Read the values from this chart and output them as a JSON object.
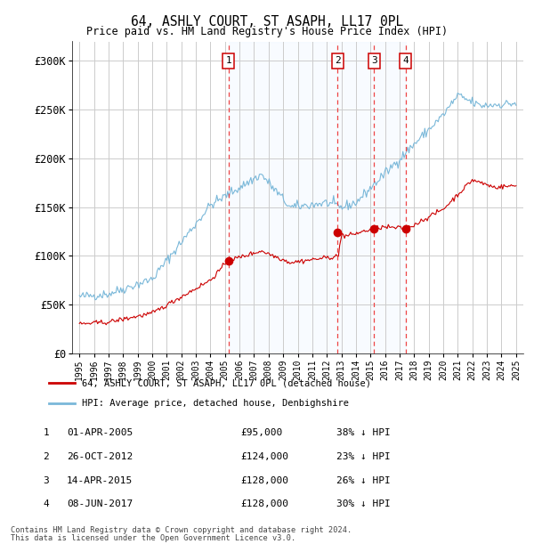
{
  "title": "64, ASHLY COURT, ST ASAPH, LL17 0PL",
  "subtitle": "Price paid vs. HM Land Registry's House Price Index (HPI)",
  "legend_line1": "64, ASHLY COURT, ST ASAPH, LL17 0PL (detached house)",
  "legend_line2": "HPI: Average price, detached house, Denbighshire",
  "footer1": "Contains HM Land Registry data © Crown copyright and database right 2024.",
  "footer2": "This data is licensed under the Open Government Licence v3.0.",
  "sale_dates": [
    "01-APR-2005",
    "26-OCT-2012",
    "14-APR-2015",
    "08-JUN-2017"
  ],
  "sale_prices": [
    95000,
    124000,
    128000,
    128000
  ],
  "sale_labels": [
    "1",
    "2",
    "3",
    "4"
  ],
  "sale_hpi_diff": [
    "38% ↓ HPI",
    "23% ↓ HPI",
    "26% ↓ HPI",
    "30% ↓ HPI"
  ],
  "hpi_color": "#7ab8d9",
  "price_color": "#cc0000",
  "shade_color": "#ddeeff",
  "dashed_color": "#ee4444",
  "marker_color": "#cc0000",
  "background_color": "#ffffff",
  "grid_color": "#cccccc",
  "ylim": [
    0,
    320000
  ],
  "yticks": [
    0,
    50000,
    100000,
    150000,
    200000,
    250000,
    300000
  ],
  "ytick_labels": [
    "£0",
    "£50K",
    "£100K",
    "£150K",
    "£200K",
    "£250K",
    "£300K"
  ]
}
